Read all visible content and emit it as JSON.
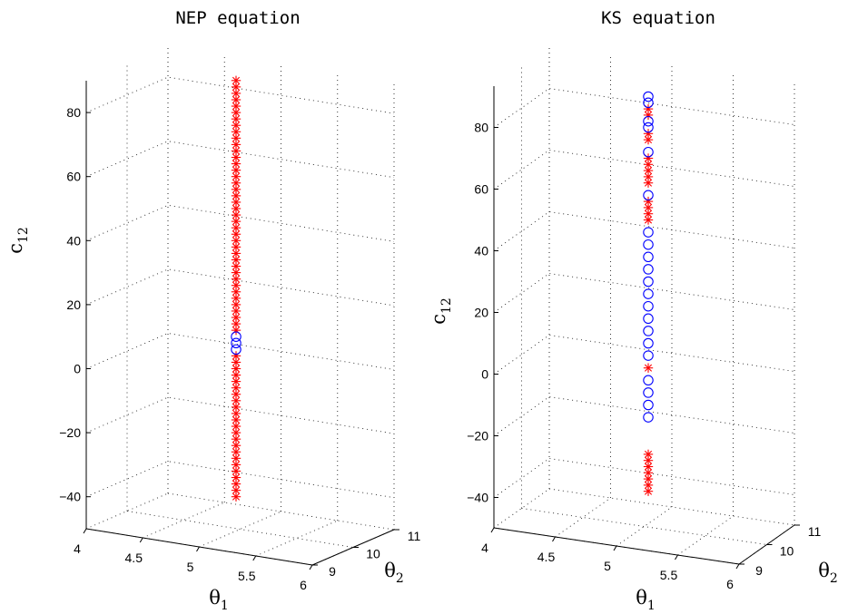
{
  "chart_data": [
    {
      "type": "scatter3d",
      "title": "NEP equation",
      "xlabel": "θ1",
      "ylabel": "θ2",
      "zlabel": "c12",
      "xlim": [
        4,
        6
      ],
      "ylim": [
        9,
        11
      ],
      "zlim": [
        -50,
        90
      ],
      "xticks": [
        "4",
        "4.5",
        "5",
        "5.5",
        "6"
      ],
      "yticks": [
        "9",
        "10",
        "11"
      ],
      "zticks": [
        "80",
        "60",
        "40",
        "20",
        "0",
        "−20",
        "−40"
      ],
      "grid": true,
      "x": 5.2,
      "y": 10,
      "star_series": {
        "marker": "*",
        "color": "#ff0000",
        "z": [
          -40,
          -38,
          -36,
          -34,
          -32,
          -30,
          -28,
          -26,
          -24,
          -22,
          -20,
          -18,
          -16,
          -14,
          -12,
          -10,
          -8,
          -6,
          -4,
          -2,
          0,
          2,
          4,
          12,
          14,
          16,
          18,
          20,
          22,
          24,
          26,
          28,
          30,
          32,
          34,
          36,
          38,
          40,
          42,
          44,
          46,
          48,
          50,
          52,
          54,
          56,
          58,
          60,
          62,
          64,
          66,
          68,
          70,
          72,
          74,
          76,
          78,
          80,
          82,
          84,
          86,
          88,
          90
        ]
      },
      "circle_series": {
        "marker": "o",
        "color": "#0000ff",
        "z": [
          6,
          8,
          10
        ]
      }
    },
    {
      "type": "scatter3d",
      "title": "KS equation",
      "xlabel": "θ1",
      "ylabel": "θ2",
      "zlabel": "c12",
      "xlim": [
        4,
        6
      ],
      "ylim": [
        9,
        11
      ],
      "zlim": [
        -50,
        90
      ],
      "xticks": [
        "4",
        "4.5",
        "5",
        "5.5",
        "6"
      ],
      "yticks": [
        "9",
        "10",
        "11"
      ],
      "zticks": [
        "80",
        "60",
        "40",
        "20",
        "0",
        "−20",
        "−40"
      ],
      "grid": true,
      "x": 5.2,
      "y": 10,
      "star_series": {
        "marker": "*",
        "color": "#ff0000",
        "z": [
          -38,
          -36,
          -34,
          -32,
          -30,
          -28,
          -26,
          2,
          50,
          52,
          54,
          56,
          62,
          64,
          66,
          68,
          70,
          76,
          78,
          84,
          86
        ]
      },
      "circle_series": {
        "marker": "o",
        "color": "#0000ff",
        "z": [
          -14,
          -10,
          -6,
          -2,
          6,
          10,
          14,
          18,
          22,
          26,
          30,
          34,
          38,
          42,
          46,
          58,
          72,
          80,
          82,
          88,
          90
        ]
      }
    }
  ]
}
